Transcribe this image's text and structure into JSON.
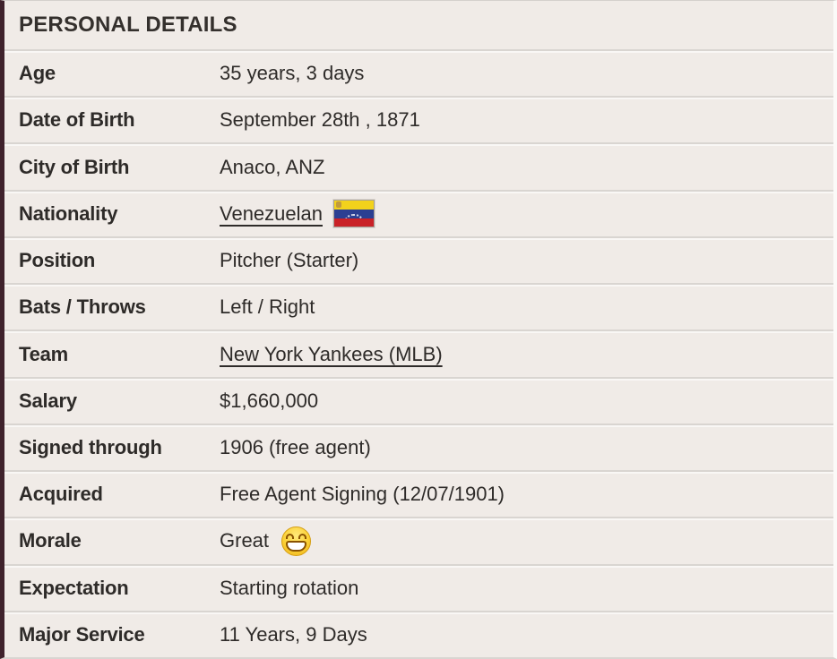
{
  "panel": {
    "title": "PERSONAL DETAILS",
    "rows": [
      {
        "label": "Age",
        "value": "35 years, 3 days"
      },
      {
        "label": "Date of Birth",
        "value": "September 28th , 1871"
      },
      {
        "label": "City of Birth",
        "value": "Anaco, ANZ"
      },
      {
        "label": "Nationality",
        "value": "Venezuelan",
        "link": true,
        "flag_icon": "venezuela-flag-icon"
      },
      {
        "label": "Position",
        "value": "Pitcher (Starter)"
      },
      {
        "label": "Bats / Throws",
        "value": "Left / Right"
      },
      {
        "label": "Team",
        "value": "New York Yankees (MLB)",
        "link": true
      },
      {
        "label": "Salary",
        "value": "$1,660,000"
      },
      {
        "label": "Signed through",
        "value": "1906 (free agent)"
      },
      {
        "label": "Acquired",
        "value": "Free Agent Signing (12/07/1901)"
      },
      {
        "label": "Morale",
        "value": "Great",
        "emoji_icon": "beaming-face-emoji"
      },
      {
        "label": "Expectation",
        "value": "Starting rotation"
      },
      {
        "label": "Major Service",
        "value": "11 Years, 9 Days"
      }
    ]
  },
  "colors": {
    "accent_bar": "#3f222c",
    "panel_bg": "#f0ebe7",
    "separator": "#d9d5d1",
    "text": "#2e2b29",
    "flag_yellow": "#f2d21c",
    "flag_blue": "#2b3f92",
    "flag_red": "#c92127"
  }
}
